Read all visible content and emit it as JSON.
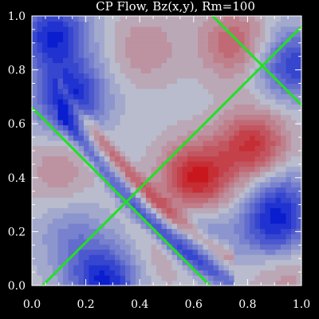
{
  "chart_data": {
    "type": "heatmap",
    "title": "CP Flow, Bz(x,y), Rm=100",
    "xlabel": "",
    "ylabel": "",
    "xlim": [
      0.0,
      1.0
    ],
    "ylim": [
      0.0,
      1.0
    ],
    "x_ticks": [
      "0.0",
      "0.2",
      "0.4",
      "0.6",
      "0.8",
      "1.0"
    ],
    "y_ticks": [
      "0.0",
      "0.2",
      "0.4",
      "0.6",
      "0.8",
      "1.0"
    ],
    "colorscale": {
      "negative": "#0a1ecf",
      "zero": "#b9bccd",
      "positive": "#c8181e"
    },
    "field_features": [
      {
        "kind": "positive",
        "x": 0.82,
        "y": 0.52,
        "amplitude": 0.85
      },
      {
        "kind": "positive",
        "x": 0.61,
        "y": 0.4,
        "amplitude": 1.0
      },
      {
        "kind": "positive",
        "x": 0.75,
        "y": 0.9,
        "amplitude": 0.55
      },
      {
        "kind": "positive",
        "x": 0.42,
        "y": 0.88,
        "amplitude": 0.3
      },
      {
        "kind": "positive",
        "x": 0.1,
        "y": 0.43,
        "amplitude": 0.28
      },
      {
        "kind": "positive",
        "x": 0.5,
        "y": 0.12,
        "amplitude": 0.3
      },
      {
        "kind": "positive",
        "x": 0.93,
        "y": 0.07,
        "amplitude": 0.35
      },
      {
        "kind": "negative",
        "x": 0.14,
        "y": 0.7,
        "amplitude": 1.0
      },
      {
        "kind": "negative",
        "x": 0.08,
        "y": 0.93,
        "amplitude": 0.95
      },
      {
        "kind": "negative",
        "x": 0.27,
        "y": 0.02,
        "amplitude": 0.95
      },
      {
        "kind": "negative",
        "x": 0.97,
        "y": 0.82,
        "amplitude": 0.8
      },
      {
        "kind": "negative",
        "x": 0.9,
        "y": 0.2,
        "amplitude": 0.75
      },
      {
        "kind": "negative",
        "x": 0.92,
        "y": 0.32,
        "amplitude": 0.55
      },
      {
        "kind": "negative",
        "x": 0.6,
        "y": 0.18,
        "amplitude": 0.5
      },
      {
        "kind": "negative",
        "x": 0.15,
        "y": 0.18,
        "amplitude": 0.35
      }
    ],
    "overlay_lines": {
      "color": "#22e022",
      "segments": [
        {
          "x": [
            0.0,
            0.66
          ],
          "y": [
            0.66,
            0.0
          ]
        },
        {
          "x": [
            0.04,
            1.0
          ],
          "y": [
            0.0,
            0.96
          ]
        },
        {
          "x": [
            0.67,
            1.0
          ],
          "y": [
            1.0,
            0.67
          ]
        }
      ]
    }
  }
}
